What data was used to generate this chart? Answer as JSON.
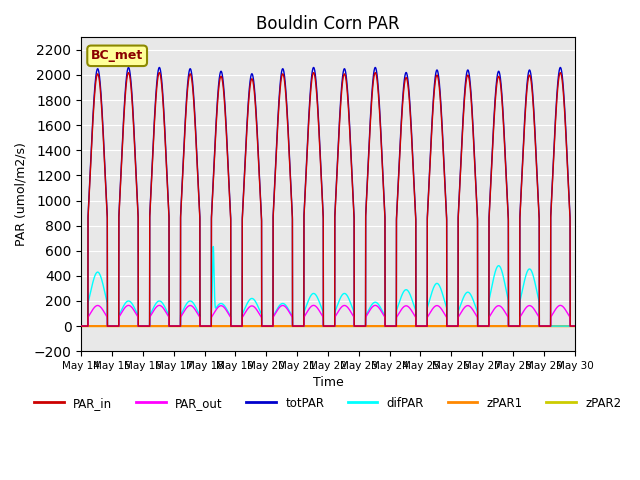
{
  "title": "Bouldin Corn PAR",
  "ylabel": "PAR (umol/m2/s)",
  "xlabel": "Time",
  "annotation": "BC_met",
  "ylim": [
    -200,
    2300
  ],
  "yticks": [
    -200,
    0,
    200,
    400,
    600,
    800,
    1000,
    1200,
    1400,
    1600,
    1800,
    2000,
    2200
  ],
  "background_color": "#e8e8e8",
  "line_colors": {
    "PAR_in": "#cc0000",
    "PAR_out": "#ff00ff",
    "totPAR": "#0000cc",
    "difPAR": "#00ffff",
    "zPAR1": "#ff8800",
    "zPAR2": "#cccc00"
  },
  "n_days": 16,
  "start_day": 14,
  "peak_values": [
    2050,
    2060,
    2060,
    2050,
    2030,
    2010,
    2050,
    2060,
    2050,
    2060,
    2020,
    2040,
    2040,
    2030,
    2040,
    2060
  ],
  "difPAR_peaks": [
    430,
    200,
    200,
    200,
    530,
    220,
    180,
    260,
    260,
    190,
    290,
    340,
    270,
    740,
    700,
    0
  ]
}
